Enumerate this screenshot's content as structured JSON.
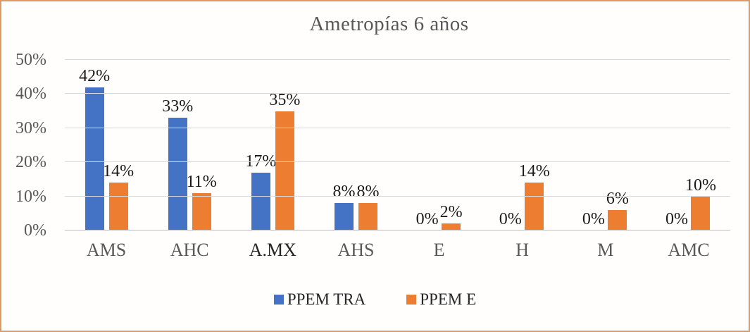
{
  "frame": {
    "border_color": "#dd9a66",
    "background_color": "#fffefd"
  },
  "chart_data": {
    "type": "bar",
    "title": "Ametropías 6 años",
    "categories": [
      "AMS",
      "AHC",
      "A.MX",
      "AHS",
      "E",
      "H",
      "M",
      "AMC"
    ],
    "category_colors": [
      "#595959",
      "#595959",
      "#262626",
      "#595959",
      "#595959",
      "#595959",
      "#595959",
      "#595959"
    ],
    "series": [
      {
        "name": "PPEM TRA",
        "color": "#4472c4",
        "values": [
          42,
          33,
          17,
          8,
          0,
          0,
          0,
          0
        ]
      },
      {
        "name": "PPEM E",
        "color": "#ed7d31",
        "values": [
          14,
          11,
          35,
          8,
          2,
          14,
          6,
          10
        ]
      }
    ],
    "data_labels": [
      "42%",
      "33%",
      "17%",
      "8%",
      "0%",
      "0%",
      "0%",
      "0%",
      "14%",
      "11%",
      "35%",
      "8%",
      "2%",
      "14%",
      "6%",
      "10%"
    ],
    "value_suffix": "%",
    "y_axis": {
      "min": 0,
      "max": 50,
      "step": 10,
      "tick_labels": [
        "0%",
        "10%",
        "20%",
        "30%",
        "40%",
        "50%"
      ]
    },
    "grid": true,
    "legend_position": "bottom",
    "colors": {
      "gridline": "#d9d9d9",
      "axis_line": "#bfbfbf",
      "axis_text": "#595959",
      "data_label_text": "#1a1a1a",
      "legend_text": "#262626",
      "title_text": "#595959"
    }
  }
}
